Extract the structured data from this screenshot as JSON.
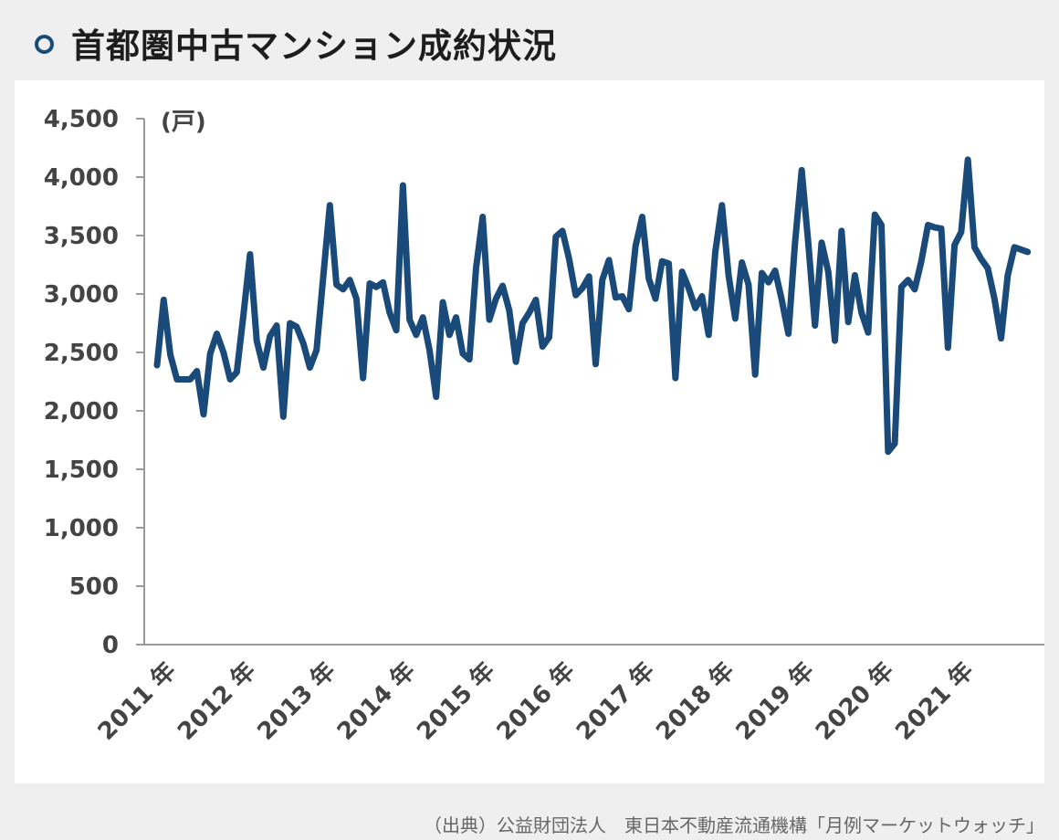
{
  "header": {
    "title": "首都圏中古マンション成約状況"
  },
  "source": "（出典）公益財団法人　東日本不動産流通機構「月例マーケットウォッチ」",
  "colors": {
    "line": "#1a4a79",
    "accent": "#1a4a79"
  },
  "chart_data": {
    "type": "line",
    "title": "首都圏中古マンション成約状況",
    "unit_label": "(戸)",
    "xlabel": "",
    "ylabel": "",
    "ylim": [
      0,
      4500
    ],
    "y_ticks": [
      0,
      500,
      1000,
      1500,
      2000,
      2500,
      3000,
      3500,
      4000,
      4500
    ],
    "y_tick_labels": [
      "0",
      "500",
      "1,000",
      "1,500",
      "2,000",
      "2,500",
      "3,000",
      "3,500",
      "4,000",
      "4,500"
    ],
    "x_tick_labels": [
      "2011 年",
      "2012 年",
      "2013 年",
      "2014 年",
      "2015 年",
      "2016 年",
      "2017 年",
      "2018 年",
      "2019 年",
      "2020 年",
      "2021 年"
    ],
    "grid": false,
    "legend": "none",
    "series": [
      {
        "values": [
          2390,
          2950,
          2480,
          2270,
          2270,
          2270,
          2340,
          1970,
          2490,
          2660,
          2500,
          2270,
          2330,
          2820,
          3340,
          2600,
          2370,
          2640,
          2730,
          1950,
          2750,
          2720,
          2580,
          2370,
          2520,
          3140,
          3760,
          3080,
          3040,
          3120,
          2960,
          2280,
          3090,
          3060,
          3100,
          2840,
          2690,
          3930,
          2780,
          2650,
          2800,
          2520,
          2120,
          2930,
          2650,
          2800,
          2490,
          2440,
          3220,
          3660,
          2780,
          2960,
          3070,
          2860,
          2420,
          2750,
          2840,
          2950,
          2550,
          2630,
          3490,
          3540,
          3300,
          2990,
          3050,
          3150,
          2400,
          3120,
          3290,
          2970,
          2980,
          2870,
          3410,
          3660,
          3130,
          2960,
          3280,
          3260,
          2280,
          3190,
          3050,
          2880,
          2980,
          2650,
          3360,
          3760,
          3160,
          2790,
          3270,
          3080,
          2310,
          3180,
          3100,
          3200,
          2950,
          2660,
          3440,
          4060,
          3430,
          2730,
          3440,
          3190,
          2600,
          3540,
          2760,
          3160,
          2840,
          2670,
          3680,
          3590,
          1650,
          1720,
          3060,
          3120,
          3040,
          3280,
          3590,
          3570,
          3560,
          2540,
          3420,
          3530,
          4150,
          3400,
          3300,
          3220,
          2960,
          2620,
          3160,
          3400,
          3380,
          3360
        ]
      }
    ]
  }
}
